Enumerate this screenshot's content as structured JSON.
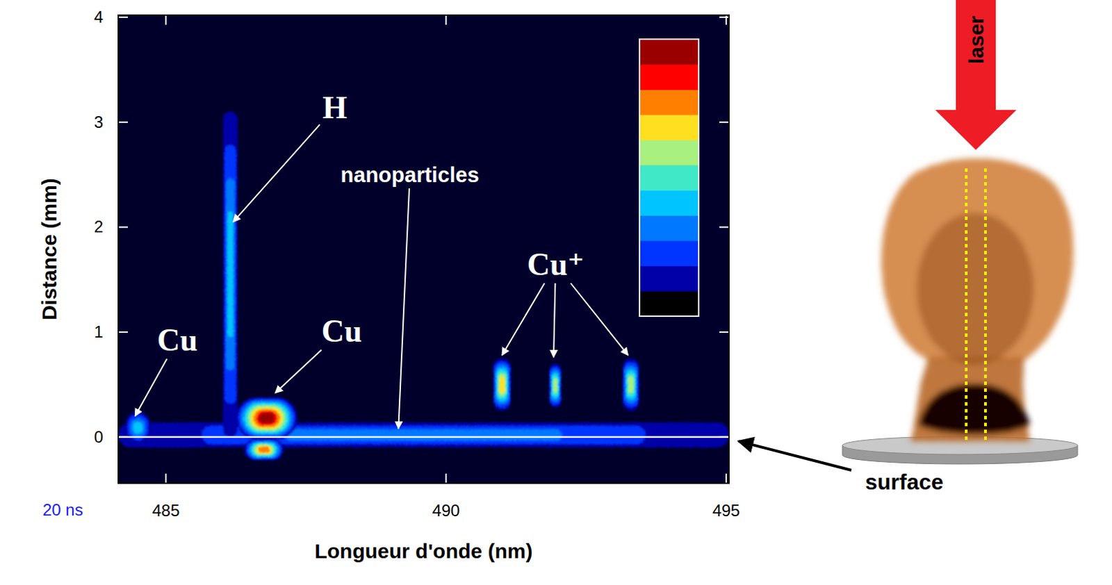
{
  "chart_data": {
    "type": "spectral_image",
    "xlabel": "Longueur d'onde (nm)",
    "ylabel": "Distance (mm)",
    "time_label": "20 ns",
    "xlim": [
      484.15,
      495.05
    ],
    "ylim": [
      -0.44,
      4.02
    ],
    "xticks": [
      485,
      490,
      495
    ],
    "yticks": [
      0,
      1,
      2,
      3,
      4
    ],
    "surface_distance": 0,
    "clim": [
      0,
      1
    ],
    "colorbar_colors": [
      "#000000",
      "#0000a8",
      "#0034ff",
      "#0078ff",
      "#00c4ff",
      "#40e8c8",
      "#a8f080",
      "#ffe020",
      "#ff8000",
      "#ff0000",
      "#9b0000"
    ],
    "features": [
      {
        "wavelength": 489.6,
        "width": 10.9,
        "distance": [
          -0.1,
          0.14
        ],
        "intensity": 0.3
      },
      {
        "wavelength": 484.5,
        "width": 0.45,
        "distance": [
          -0.06,
          0.24
        ],
        "intensity": 0.35
      },
      {
        "wavelength": 486.15,
        "width": 0.26,
        "distance": [
          0.0,
          3.1
        ],
        "intensity": 0.35
      },
      {
        "wavelength": 486.8,
        "width": 1.1,
        "distance": [
          -0.02,
          0.38
        ],
        "intensity": 1.0
      },
      {
        "wavelength": 486.75,
        "width": 0.7,
        "distance": [
          -0.22,
          -0.02
        ],
        "intensity": 0.8
      },
      {
        "wavelength": 491.0,
        "width": 0.32,
        "distance": [
          0.25,
          0.75
        ],
        "intensity": 0.65
      },
      {
        "wavelength": 491.95,
        "width": 0.22,
        "distance": [
          0.28,
          0.7
        ],
        "intensity": 0.55
      },
      {
        "wavelength": 493.3,
        "width": 0.3,
        "distance": [
          0.25,
          0.75
        ],
        "intensity": 0.6
      }
    ],
    "annotations": [
      {
        "text": "Cu",
        "points": [
          [
            484.45,
            0.2
          ]
        ]
      },
      {
        "text": "H",
        "points": [
          [
            486.2,
            2.05
          ]
        ]
      },
      {
        "text": "Cu",
        "points": [
          [
            486.95,
            0.42
          ]
        ]
      },
      {
        "text": "nanoparticles",
        "points": [
          [
            489.15,
            0.08
          ]
        ]
      },
      {
        "text": "Cu⁺",
        "points": [
          [
            491.0,
            0.78
          ],
          [
            491.92,
            0.76
          ],
          [
            493.25,
            0.78
          ]
        ]
      }
    ]
  },
  "diagram": {
    "beam_label": "laser",
    "surface_label": "surface"
  }
}
